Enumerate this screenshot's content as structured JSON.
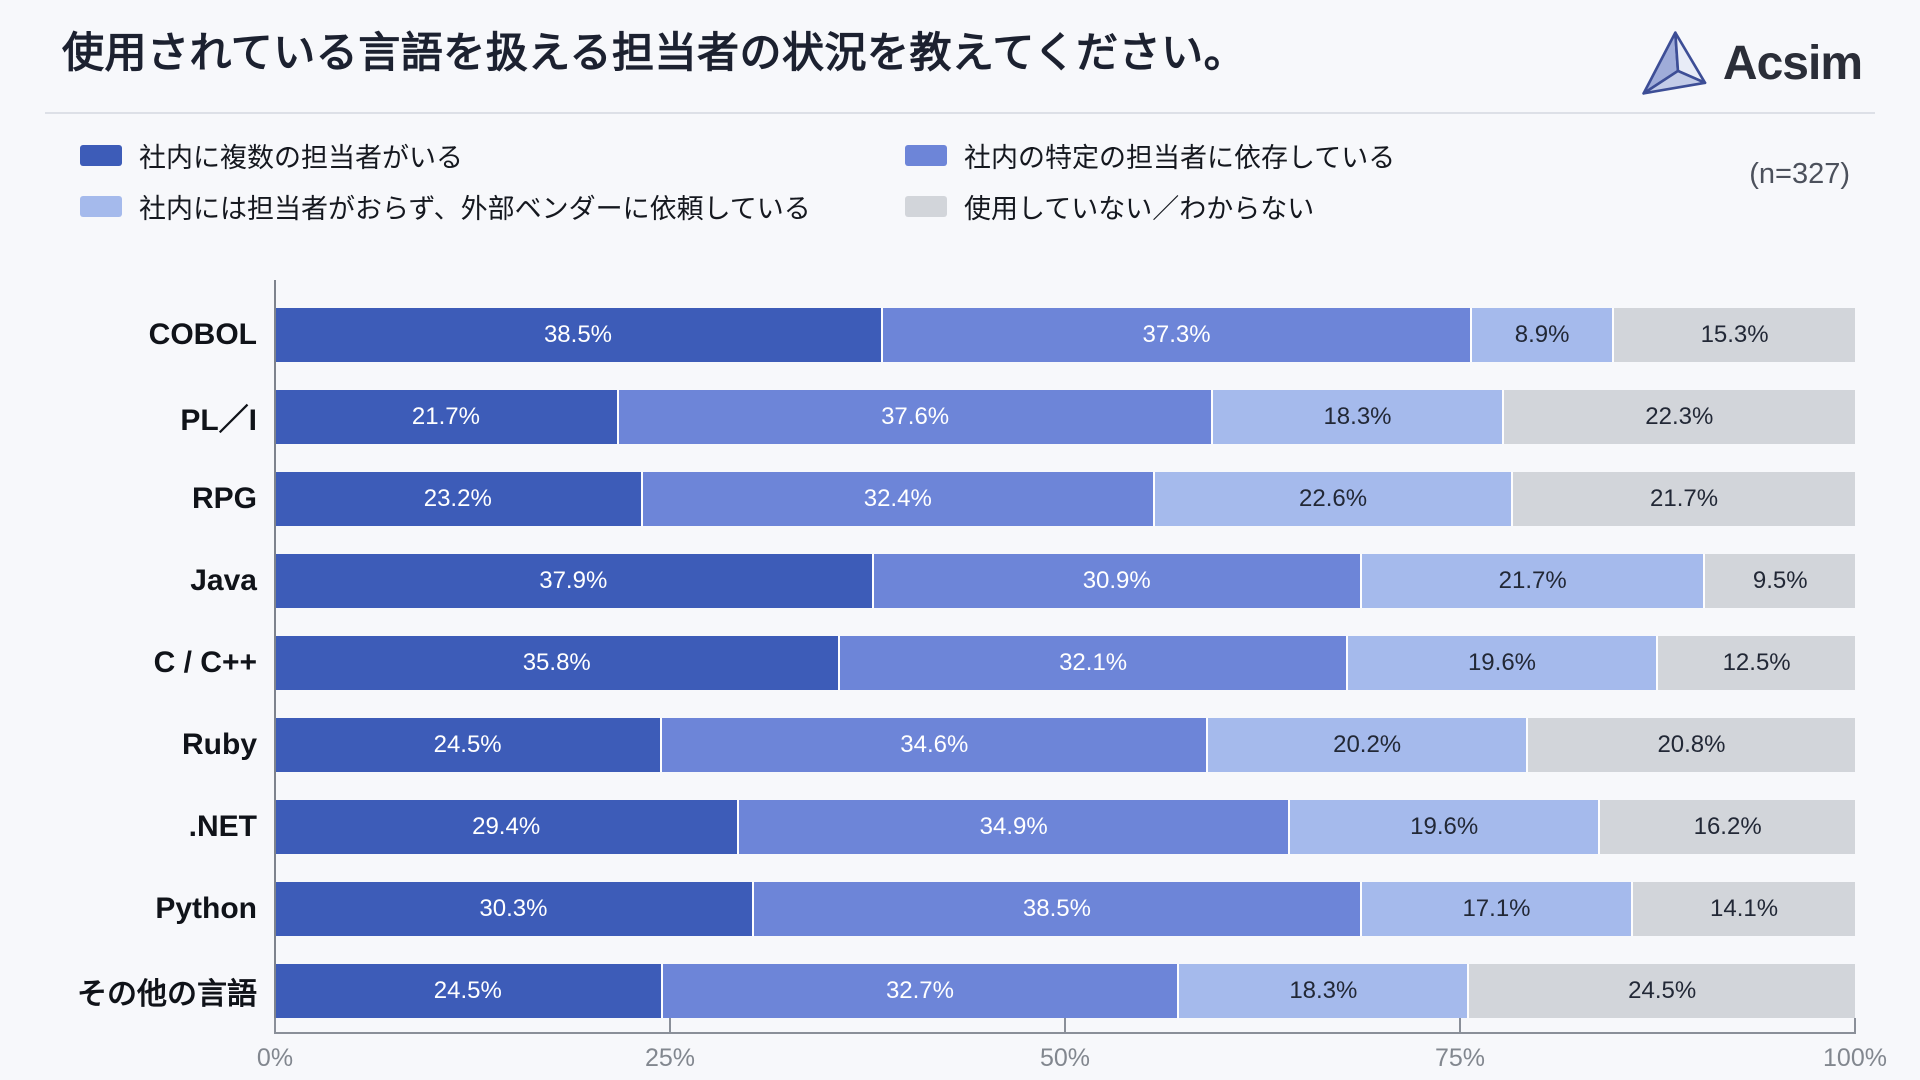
{
  "header": {
    "title": "使用されている言語を扱える担当者の状況を教えてください。",
    "brand": "Acsim"
  },
  "legend": {
    "sample_size": "(n=327)",
    "items": [
      {
        "label": "社内に複数の担当者がいる",
        "color": "#3D5CB8"
      },
      {
        "label": "社内の特定の担当者に依存している",
        "color": "#6D85D8"
      },
      {
        "label": "社内には担当者がおらず、外部ベンダーに依頼している",
        "color": "#A5BAEC"
      },
      {
        "label": "使用していない／わからない",
        "color": "#D2D5DA"
      }
    ]
  },
  "chart_data": {
    "type": "bar",
    "orientation": "horizontal",
    "stacked": true,
    "unit": "%",
    "xlim": [
      0,
      100
    ],
    "x_ticks": [
      "0%",
      "25%",
      "50%",
      "75%",
      "100%"
    ],
    "grid": false,
    "legend_position": "top",
    "categories": [
      "COBOL",
      "PL／I",
      "RPG",
      "Java",
      "C / C++",
      "Ruby",
      ".NET",
      "Python",
      "その他の言語"
    ],
    "series": [
      {
        "name": "社内に複数の担当者がいる",
        "color": "#3D5CB8",
        "label_color": "#FFFFFF",
        "values": [
          38.5,
          21.7,
          23.2,
          37.9,
          35.8,
          24.5,
          29.4,
          30.3,
          24.5
        ]
      },
      {
        "name": "社内の特定の担当者に依存している",
        "color": "#6D85D8",
        "label_color": "#FFFFFF",
        "values": [
          37.3,
          37.6,
          32.4,
          30.9,
          32.1,
          34.6,
          34.9,
          38.5,
          32.7
        ]
      },
      {
        "name": "社内には担当者がおらず、外部ベンダーに依頼している",
        "color": "#A5BAEC",
        "label_color": "#222836",
        "values": [
          8.9,
          18.3,
          22.6,
          21.7,
          19.6,
          20.2,
          19.6,
          17.1,
          18.3
        ]
      },
      {
        "name": "使用していない／わからない",
        "color": "#D2D5DA",
        "label_color": "#222836",
        "values": [
          15.3,
          22.3,
          21.7,
          9.5,
          12.5,
          20.8,
          16.2,
          14.1,
          24.5
        ]
      }
    ]
  }
}
